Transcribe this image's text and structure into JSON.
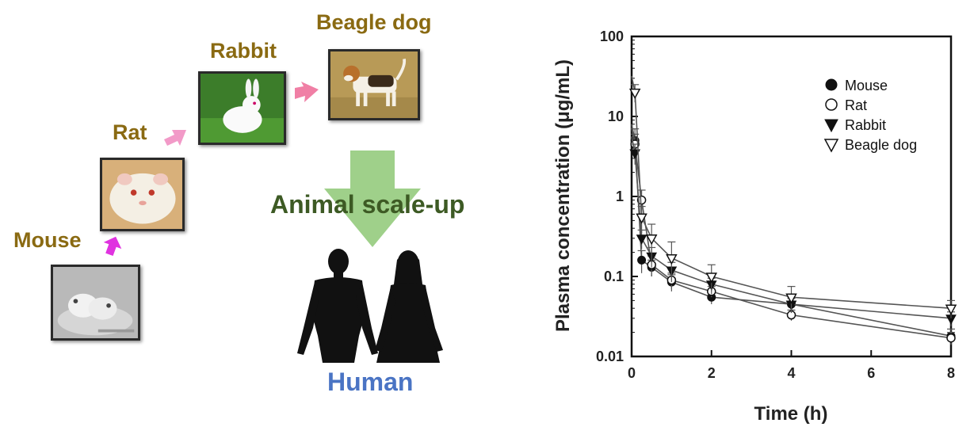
{
  "diagram": {
    "labels": {
      "mouse": "Mouse",
      "rat": "Rat",
      "rabbit": "Rabbit",
      "beagle": "Beagle dog",
      "scale_up": "Animal scale-up",
      "human": "Human"
    },
    "colors": {
      "animal_label": "#8a6a12",
      "scale_up_label": "#3d5a24",
      "human_label": "#4a74c4",
      "big_arrow": "#9fd08a",
      "small_arrow_mouse": "#e033e0",
      "small_arrow_rat": "#f29ac8",
      "small_arrow_rabbit": "#f07fa5",
      "silhouette": "#111111"
    },
    "photo_caption": "http://blog.naver.com/..."
  },
  "chart_data": {
    "type": "line",
    "xlabel": "Time (h)",
    "ylabel": "Plasma concentration (μg/mL)",
    "xlim": [
      0,
      8
    ],
    "ylim": [
      0.01,
      100
    ],
    "yscale": "log",
    "x_ticks": [
      "0",
      "2",
      "4",
      "6",
      "8"
    ],
    "y_ticks": [
      "0.01",
      "0.1",
      "1",
      "10",
      "100"
    ],
    "legend_position": "top-right",
    "series": [
      {
        "name": "Mouse",
        "marker": "filled-circle",
        "x": [
          0.0833,
          0.25,
          0.5,
          1,
          2,
          4,
          8
        ],
        "y": [
          5.0,
          0.16,
          0.13,
          0.085,
          0.055,
          0.045,
          0.018
        ],
        "err": [
          2.0,
          0.05,
          0.03,
          0.02,
          0.01,
          0.008,
          0.004
        ]
      },
      {
        "name": "Rat",
        "marker": "open-circle",
        "x": [
          0.0833,
          0.25,
          0.5,
          1,
          2,
          4,
          8
        ],
        "y": [
          4.5,
          0.9,
          0.14,
          0.09,
          0.065,
          0.033,
          0.017
        ],
        "err": [
          1.5,
          0.3,
          0.04,
          0.02,
          0.01,
          0.005,
          0.003
        ]
      },
      {
        "name": "Rabbit",
        "marker": "filled-triangle-down",
        "x": [
          0.0833,
          0.25,
          0.5,
          1,
          2,
          4,
          8
        ],
        "y": [
          3.5,
          0.3,
          0.18,
          0.12,
          0.08,
          0.045,
          0.03
        ],
        "err": [
          1.0,
          0.08,
          0.05,
          0.03,
          0.015,
          0.01,
          0.006
        ]
      },
      {
        "name": "Beagle dog",
        "marker": "open-triangle-down",
        "x": [
          0.0833,
          0.25,
          0.5,
          1,
          2,
          4,
          8
        ],
        "y": [
          20,
          0.55,
          0.3,
          0.17,
          0.1,
          0.055,
          0.04
        ],
        "err": [
          5,
          0.2,
          0.15,
          0.1,
          0.04,
          0.02,
          0.01
        ]
      }
    ]
  }
}
